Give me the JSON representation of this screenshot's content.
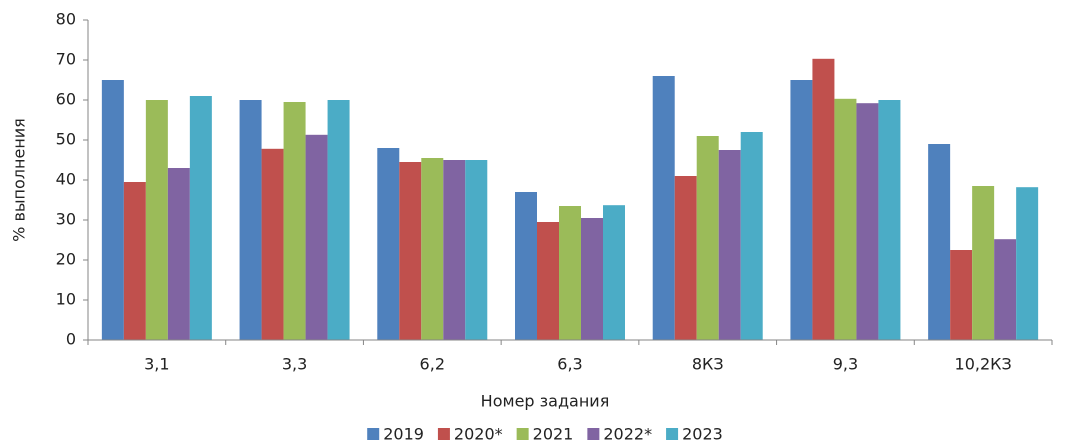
{
  "chart_data": {
    "type": "bar",
    "categories": [
      "3,1",
      "3,3",
      "6,2",
      "6,3",
      "8КЗ",
      "9,3",
      "10,2КЗ"
    ],
    "series": [
      {
        "name": "2019",
        "color": "#4f81bd",
        "values": [
          65,
          60,
          48,
          37,
          66,
          65,
          49
        ]
      },
      {
        "name": "2020*",
        "color": "#c0504d",
        "values": [
          39.5,
          47.8,
          44.5,
          29.5,
          41,
          70.3,
          22.5
        ]
      },
      {
        "name": "2021",
        "color": "#9bbb59",
        "values": [
          60,
          59.5,
          45.5,
          33.5,
          51,
          60.3,
          38.5
        ]
      },
      {
        "name": "2022*",
        "color": "#8064a2",
        "values": [
          43,
          51.3,
          45,
          30.5,
          47.5,
          59.2,
          25.2
        ]
      },
      {
        "name": "2023",
        "color": "#4bacc6",
        "values": [
          61,
          60,
          45,
          33.7,
          52,
          60,
          38.2
        ]
      }
    ],
    "xlabel": "Номер задания",
    "ylabel": "% выполнения",
    "ylim": [
      0,
      80
    ],
    "yticks": [
      0,
      10,
      20,
      30,
      40,
      50,
      60,
      70,
      80
    ],
    "grid": false,
    "legend": "bottom"
  }
}
